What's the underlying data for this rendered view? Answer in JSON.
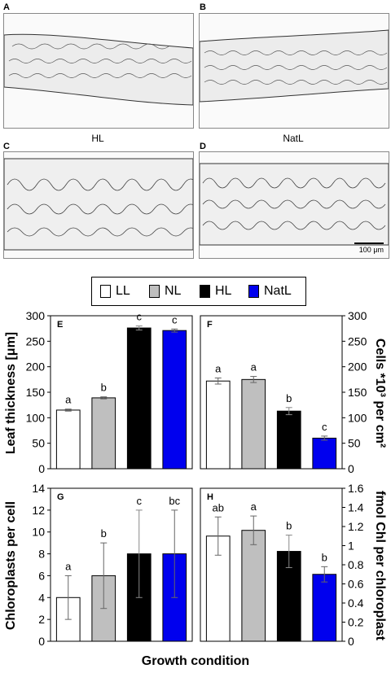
{
  "micrographs": {
    "panels": [
      {
        "letter": "A",
        "condition": ""
      },
      {
        "letter": "B",
        "condition": ""
      },
      {
        "letter": "C",
        "condition": "HL"
      },
      {
        "letter": "D",
        "condition": "NatL"
      }
    ],
    "scale_bar": "100 μm"
  },
  "legend": {
    "items": [
      {
        "label": "LL",
        "color": "#ffffff"
      },
      {
        "label": "NL",
        "color": "#bfbfbf"
      },
      {
        "label": "HL",
        "color": "#000000"
      },
      {
        "label": "NatL",
        "color": "#0000ee"
      }
    ]
  },
  "xlabel": "Growth condition",
  "chart_data": [
    {
      "panel": "E",
      "type": "bar",
      "categories": [
        "LL",
        "NL",
        "HL",
        "NatL"
      ],
      "values": [
        115,
        139,
        276,
        271
      ],
      "errors": [
        2,
        2,
        4,
        3
      ],
      "letters": [
        "a",
        "b",
        "c",
        "c"
      ],
      "ylabel": "Leaf thickness [μm]",
      "ylim": [
        0,
        300
      ],
      "yticks": [
        0,
        50,
        100,
        150,
        200,
        250,
        300
      ],
      "axis_side": "left"
    },
    {
      "panel": "F",
      "type": "bar",
      "categories": [
        "LL",
        "NL",
        "HL",
        "NatL"
      ],
      "values": [
        172,
        175,
        113,
        60
      ],
      "errors": [
        6,
        6,
        7,
        4
      ],
      "letters": [
        "a",
        "a",
        "b",
        "c"
      ],
      "ylabel": "Cells *10³ per cm²",
      "ylim": [
        0,
        300
      ],
      "yticks": [
        0,
        50,
        100,
        150,
        200,
        250,
        300
      ],
      "axis_side": "right"
    },
    {
      "panel": "G",
      "type": "bar",
      "categories": [
        "LL",
        "NL",
        "HL",
        "NatL"
      ],
      "values": [
        4,
        6,
        8,
        8
      ],
      "errors": [
        2,
        3,
        4,
        4
      ],
      "letters": [
        "a",
        "b",
        "c",
        "bc"
      ],
      "ylabel": "Chloroplasts per cell",
      "ylim": [
        0,
        14
      ],
      "yticks": [
        0,
        2,
        4,
        6,
        8,
        10,
        12,
        14
      ],
      "axis_side": "left"
    },
    {
      "panel": "H",
      "type": "bar",
      "categories": [
        "LL",
        "NL",
        "HL",
        "NatL"
      ],
      "values": [
        1.1,
        1.16,
        0.94,
        0.7
      ],
      "errors": [
        0.2,
        0.15,
        0.17,
        0.08
      ],
      "letters": [
        "ab",
        "a",
        "b",
        "b"
      ],
      "ylabel": "fmol Chl per chloroplast",
      "ylim": [
        0,
        1.6
      ],
      "yticks": [
        0,
        0.2,
        0.4,
        0.6,
        0.8,
        1,
        1.2,
        1.4,
        1.6
      ],
      "axis_side": "right"
    }
  ]
}
